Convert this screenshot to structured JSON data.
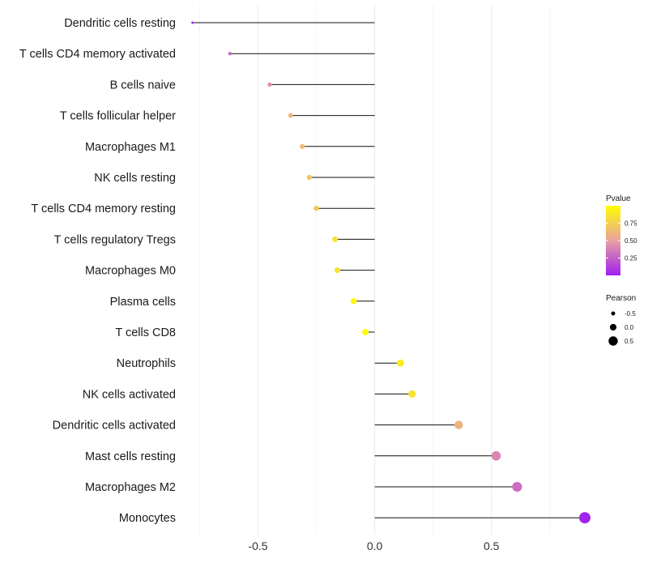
{
  "chart_data": {
    "type": "lollipop",
    "xlabel": "",
    "ylabel": "",
    "xlim": [
      -0.8,
      0.9
    ],
    "xticks": [
      -0.5,
      0.0,
      0.5
    ],
    "xtick_labels": [
      "-0.5",
      "0.0",
      "0.5"
    ],
    "grid": true,
    "categories": [
      "Dendritic cells resting",
      "T cells CD4 memory activated",
      "B cells naive",
      "T cells follicular helper",
      "Macrophages M1",
      "NK cells resting",
      "T cells CD4 memory resting",
      "T cells regulatory  Tregs",
      "Macrophages M0",
      "Plasma cells",
      "T cells CD8",
      "Neutrophils",
      "NK cells activated",
      "Dendritic cells activated",
      "Mast cells resting",
      "Macrophages M2",
      "Monocytes"
    ],
    "pearson": [
      -0.78,
      -0.62,
      -0.45,
      -0.36,
      -0.31,
      -0.28,
      -0.25,
      -0.17,
      -0.16,
      -0.09,
      -0.04,
      0.11,
      0.16,
      0.36,
      0.52,
      0.61,
      0.9
    ],
    "pvalue": [
      0.05,
      0.25,
      0.45,
      0.6,
      0.65,
      0.7,
      0.72,
      0.85,
      0.85,
      0.95,
      0.97,
      0.9,
      0.85,
      0.6,
      0.4,
      0.3,
      0.02
    ],
    "legend": {
      "color_title": "Pvalue",
      "color_ticks": [
        0.75,
        0.5,
        0.25
      ],
      "color_tick_labels": [
        "0.75",
        "0.50",
        "0.25"
      ],
      "color_range": [
        0,
        1
      ],
      "low_color": "#a020f0",
      "mid_color": "#e8a0a0",
      "high_color": "#ffff00",
      "size_title": "Pearson",
      "size_values": [
        -0.5,
        0.0,
        0.5
      ],
      "size_labels": [
        "-0.5",
        "0.0",
        "0.5"
      ],
      "placement": "right"
    }
  }
}
